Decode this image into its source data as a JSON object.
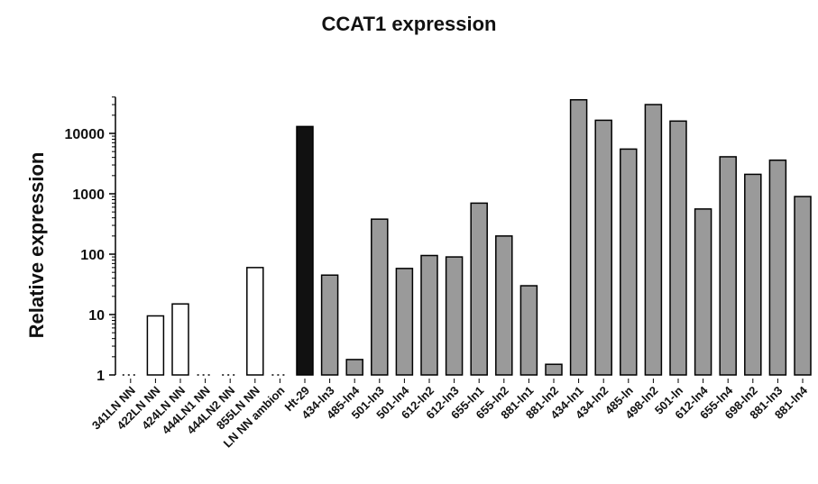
{
  "chart_data": {
    "type": "bar",
    "title": "CCAT1 expression",
    "xlabel": "",
    "ylabel": "Relative expression",
    "yscale": "log",
    "ylim": [
      1,
      40000
    ],
    "yticks": [
      1,
      10,
      100,
      1000,
      10000
    ],
    "ytick_labels": [
      "1",
      "10",
      "100",
      "1000",
      "10000"
    ],
    "grid": false,
    "categories": [
      "341LN NN",
      "422LN NN",
      "424LN NN",
      "444LN1 NN",
      "444LN2 NN",
      "855LN NN",
      "LN NN ambion",
      "Ht-29",
      "434-ln3",
      "485-ln4",
      "501-ln3",
      "501-ln4",
      "612-ln2",
      "612-ln3",
      "655-ln1",
      "655-ln2",
      "881-ln1",
      "881-ln2",
      "434-ln1",
      "434-ln2",
      "485-ln",
      "498-ln2",
      "501-ln",
      "612-ln4",
      "655-ln4",
      "698-ln2",
      "881-ln3",
      "881-ln4"
    ],
    "values": [
      1,
      9.5,
      15,
      1,
      1,
      60,
      1,
      13000,
      45,
      1.8,
      380,
      58,
      95,
      90,
      700,
      200,
      30,
      1.5,
      36000,
      16500,
      5500,
      30000,
      16000,
      560,
      4100,
      2100,
      3600,
      900
    ],
    "fill_groups": [
      "white",
      "white",
      "white",
      "white",
      "white",
      "white",
      "white",
      "black",
      "gray",
      "gray",
      "gray",
      "gray",
      "gray",
      "gray",
      "gray",
      "gray",
      "gray",
      "gray",
      "gray",
      "gray",
      "gray",
      "gray",
      "gray",
      "gray",
      "gray",
      "gray",
      "gray",
      "gray"
    ],
    "colors": {
      "white": "#ffffff",
      "black": "#111111",
      "gray": "#9a9a9a",
      "stroke": "#000000"
    }
  }
}
